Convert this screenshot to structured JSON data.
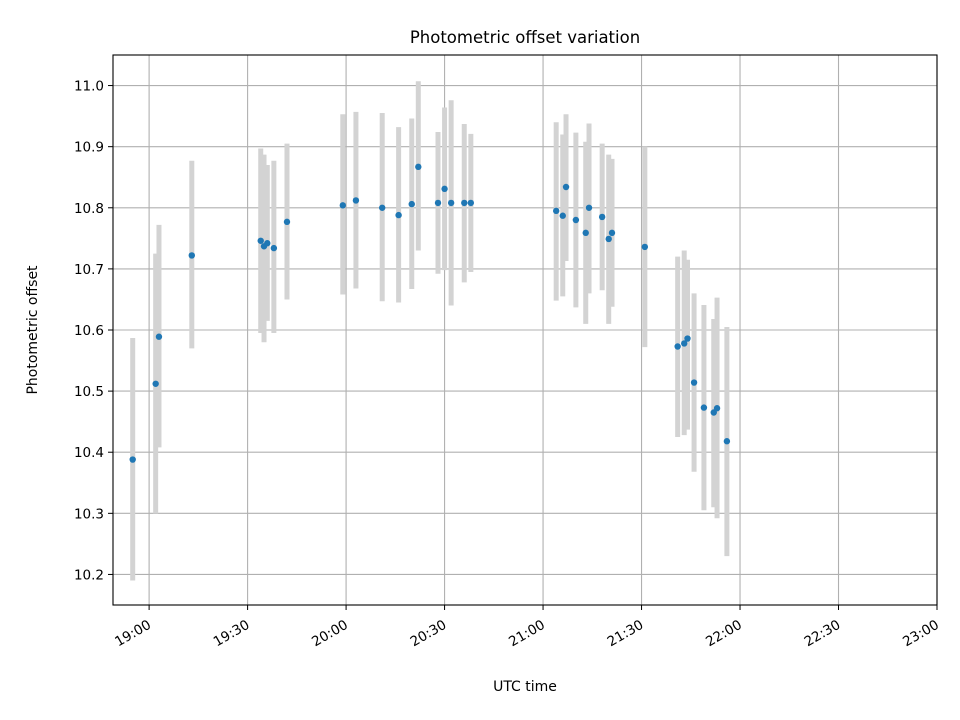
{
  "chart_data": {
    "type": "scatter",
    "title": "Photometric offset variation",
    "xlabel": "UTC time",
    "ylabel": "Photometric offset",
    "xlim": [
      "18:49",
      "23:00"
    ],
    "ylim": [
      10.15,
      11.05
    ],
    "x_ticks": [
      "19:00",
      "19:30",
      "20:00",
      "20:30",
      "21:00",
      "21:30",
      "22:00",
      "22:30",
      "23:00"
    ],
    "y_ticks": [
      "10.2",
      "10.3",
      "10.4",
      "10.5",
      "10.6",
      "10.7",
      "10.8",
      "10.9",
      "11.0"
    ],
    "grid": true,
    "legend": "none",
    "colors": {
      "points": "#1f77b4",
      "error_bars": "#d3d3d3",
      "grid": "#b0b0b0"
    },
    "points": [
      {
        "t": "18:55",
        "y": 10.388,
        "lo": 10.19,
        "hi": 10.587
      },
      {
        "t": "19:02",
        "y": 10.512,
        "lo": 10.3,
        "hi": 10.725
      },
      {
        "t": "19:03",
        "y": 10.589,
        "lo": 10.408,
        "hi": 10.772
      },
      {
        "t": "19:13",
        "y": 10.722,
        "lo": 10.57,
        "hi": 10.877
      },
      {
        "t": "19:34",
        "y": 10.746,
        "lo": 10.595,
        "hi": 10.897
      },
      {
        "t": "19:35",
        "y": 10.737,
        "lo": 10.58,
        "hi": 10.887
      },
      {
        "t": "19:36",
        "y": 10.742,
        "lo": 10.615,
        "hi": 10.87
      },
      {
        "t": "19:38",
        "y": 10.734,
        "lo": 10.595,
        "hi": 10.877
      },
      {
        "t": "19:42",
        "y": 10.777,
        "lo": 10.65,
        "hi": 10.905
      },
      {
        "t": "19:59",
        "y": 10.804,
        "lo": 10.658,
        "hi": 10.953
      },
      {
        "t": "20:03",
        "y": 10.812,
        "lo": 10.668,
        "hi": 10.957
      },
      {
        "t": "20:11",
        "y": 10.8,
        "lo": 10.647,
        "hi": 10.955
      },
      {
        "t": "20:16",
        "y": 10.788,
        "lo": 10.645,
        "hi": 10.932
      },
      {
        "t": "20:20",
        "y": 10.806,
        "lo": 10.667,
        "hi": 10.946
      },
      {
        "t": "20:22",
        "y": 10.867,
        "lo": 10.73,
        "hi": 11.007
      },
      {
        "t": "20:28",
        "y": 10.808,
        "lo": 10.692,
        "hi": 10.924
      },
      {
        "t": "20:30",
        "y": 10.831,
        "lo": 10.698,
        "hi": 10.964
      },
      {
        "t": "20:32",
        "y": 10.808,
        "lo": 10.64,
        "hi": 10.976
      },
      {
        "t": "20:36",
        "y": 10.808,
        "lo": 10.678,
        "hi": 10.937
      },
      {
        "t": "20:38",
        "y": 10.808,
        "lo": 10.695,
        "hi": 10.921
      },
      {
        "t": "21:04",
        "y": 10.795,
        "lo": 10.648,
        "hi": 10.94
      },
      {
        "t": "21:06",
        "y": 10.787,
        "lo": 10.655,
        "hi": 10.92
      },
      {
        "t": "21:07",
        "y": 10.834,
        "lo": 10.713,
        "hi": 10.953
      },
      {
        "t": "21:10",
        "y": 10.78,
        "lo": 10.637,
        "hi": 10.923
      },
      {
        "t": "21:13",
        "y": 10.759,
        "lo": 10.61,
        "hi": 10.908
      },
      {
        "t": "21:14",
        "y": 10.8,
        "lo": 10.66,
        "hi": 10.938
      },
      {
        "t": "21:18",
        "y": 10.785,
        "lo": 10.665,
        "hi": 10.905
      },
      {
        "t": "21:20",
        "y": 10.749,
        "lo": 10.61,
        "hi": 10.887
      },
      {
        "t": "21:21",
        "y": 10.759,
        "lo": 10.638,
        "hi": 10.88
      },
      {
        "t": "21:31",
        "y": 10.736,
        "lo": 10.572,
        "hi": 10.9
      },
      {
        "t": "21:41",
        "y": 10.573,
        "lo": 10.425,
        "hi": 10.72
      },
      {
        "t": "21:43",
        "y": 10.578,
        "lo": 10.428,
        "hi": 10.73
      },
      {
        "t": "21:44",
        "y": 10.586,
        "lo": 10.437,
        "hi": 10.715
      },
      {
        "t": "21:46",
        "y": 10.514,
        "lo": 10.368,
        "hi": 10.66
      },
      {
        "t": "21:49",
        "y": 10.473,
        "lo": 10.305,
        "hi": 10.641
      },
      {
        "t": "21:52",
        "y": 10.465,
        "lo": 10.31,
        "hi": 10.618
      },
      {
        "t": "21:53",
        "y": 10.472,
        "lo": 10.292,
        "hi": 10.653
      },
      {
        "t": "21:56",
        "y": 10.418,
        "lo": 10.23,
        "hi": 10.605
      }
    ]
  }
}
